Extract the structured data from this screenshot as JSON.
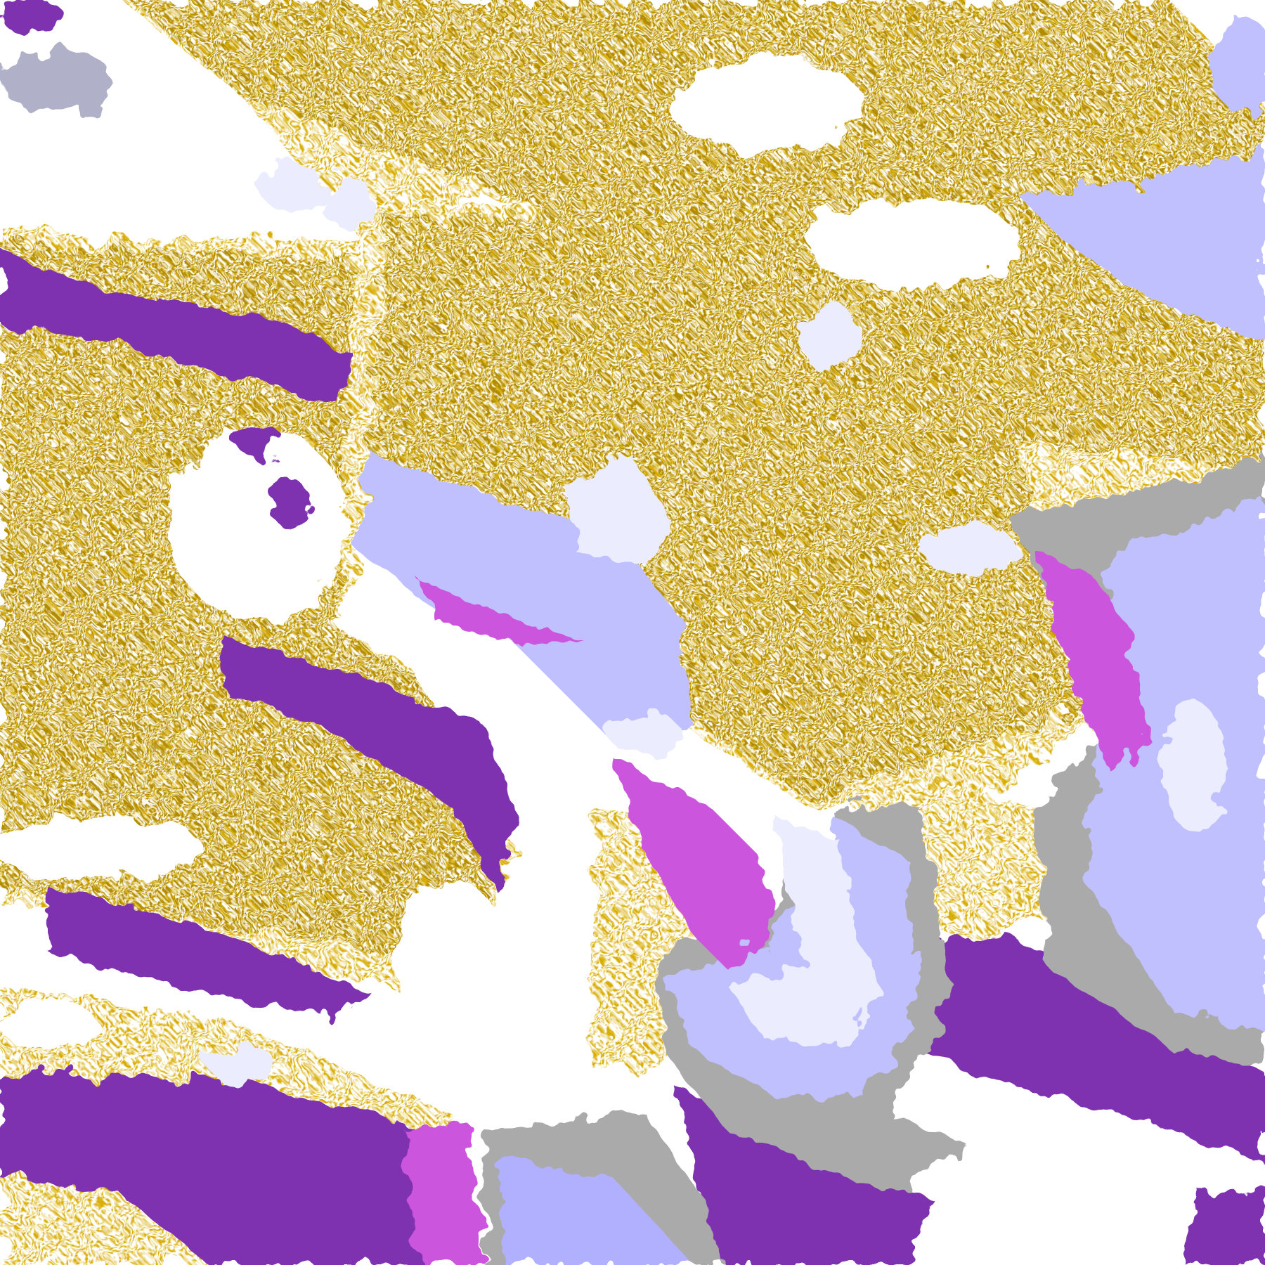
{
  "map": {
    "kind": "satellite cloud classification composite",
    "colors": {
      "clear": "#ffffff",
      "low_cloud_gold": "#d8ac00",
      "low_cloud_dark_gold": "#b08a00",
      "thick_cloud_purple": "#7f33b0",
      "magenta": "#cc55dd",
      "lavender": "#c0c0ff",
      "pale_lavender": "#ececff",
      "blue_lavender": "#9999ff",
      "gray": "#aaaaaa"
    }
  }
}
